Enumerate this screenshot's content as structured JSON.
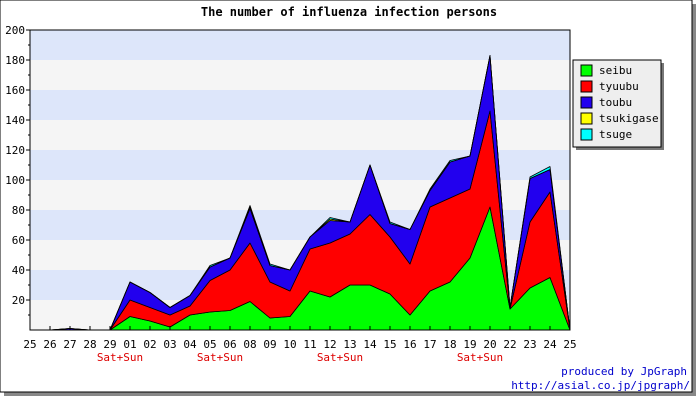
{
  "chart_data": {
    "type": "area",
    "stacked": true,
    "title": "The number of influenza infection persons",
    "xlabel": "",
    "ylabel": "",
    "categories": [
      "25",
      "26",
      "27",
      "28",
      "29",
      "01",
      "02",
      "03",
      "04",
      "05",
      "06",
      "08",
      "09",
      "10",
      "11",
      "12",
      "13",
      "14",
      "15",
      "16",
      "17",
      "18",
      "19",
      "20",
      "22",
      "23",
      "24",
      "25"
    ],
    "weekend_label": "Sat+Sun",
    "weekend_categories": [
      "29",
      "05",
      "12",
      "19"
    ],
    "ylim": [
      0,
      200
    ],
    "yticks": [
      20,
      40,
      60,
      80,
      100,
      120,
      140,
      160,
      180,
      200
    ],
    "grid": true,
    "legend_position": "right",
    "series": [
      {
        "name": "seibu",
        "color": "#00ff00",
        "values": [
          0,
          0,
          0,
          0,
          0,
          9,
          6,
          2,
          10,
          12,
          13,
          19,
          8,
          9,
          26,
          22,
          30,
          30,
          24,
          10,
          26,
          32,
          48,
          82,
          14,
          28,
          35,
          0
        ]
      },
      {
        "name": "tyuubu",
        "color": "#ff0000",
        "values": [
          0,
          0,
          0,
          0,
          0,
          11,
          9,
          8,
          6,
          21,
          27,
          39,
          24,
          17,
          28,
          36,
          34,
          47,
          38,
          34,
          56,
          56,
          46,
          64,
          0,
          44,
          57,
          0
        ]
      },
      {
        "name": "toubu",
        "color": "#2200ee",
        "values": [
          0,
          0,
          1,
          0,
          0,
          12,
          10,
          5,
          7,
          9,
          8,
          23,
          11,
          14,
          8,
          15,
          8,
          33,
          9,
          23,
          11,
          24,
          22,
          37,
          1,
          29,
          15,
          0
        ]
      },
      {
        "name": "tsukigase",
        "color": "#ffff00",
        "values": [
          0,
          0,
          0,
          0,
          0,
          0,
          0,
          0,
          0,
          0,
          0,
          1,
          0,
          0,
          0,
          1,
          0,
          0,
          0,
          0,
          0,
          0,
          0,
          0,
          0,
          0,
          0,
          0
        ]
      },
      {
        "name": "tsuge",
        "color": "#00ffff",
        "values": [
          0,
          0,
          0,
          0,
          0,
          0,
          0,
          0,
          0,
          1,
          0,
          1,
          1,
          0,
          0,
          1,
          0,
          0,
          1,
          0,
          1,
          1,
          0,
          0,
          0,
          1,
          2,
          0
        ]
      }
    ]
  },
  "credits": {
    "line1": "produced by JpGraph",
    "line2": "http://asial.co.jp/jpgraph/"
  }
}
